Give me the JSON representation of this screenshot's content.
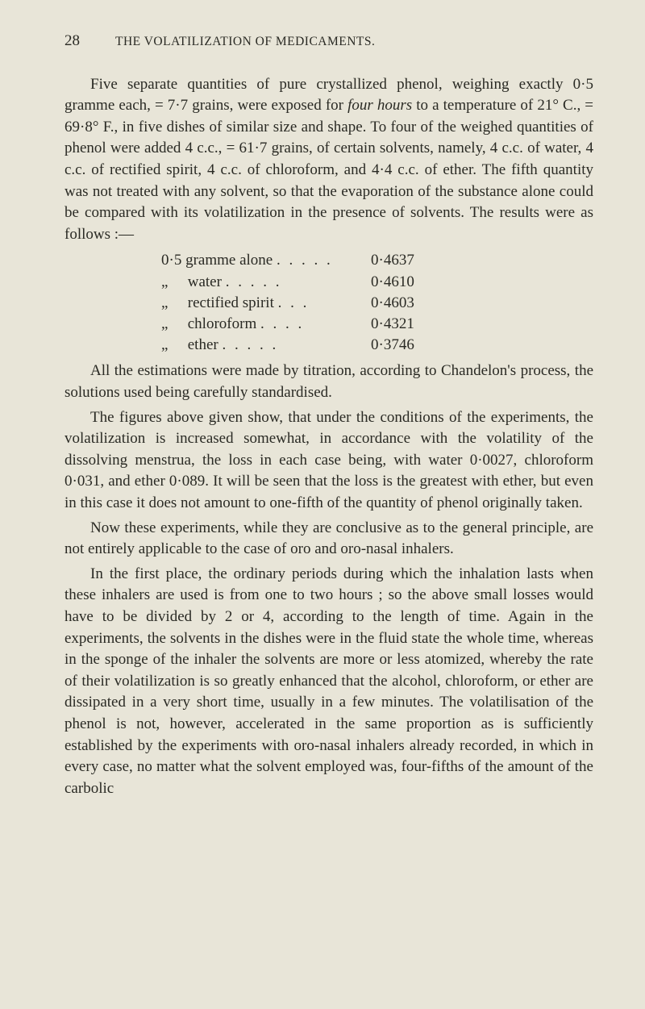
{
  "page_number": "28",
  "running_title": "THE VOLATILIZATION OF MEDICAMENTS.",
  "paragraphs": {
    "p1": "Five separate quantities of pure crystallized phenol, weighing exactly 0·5 gramme each, = 7·7 grains, were exposed for four hours to a temperature of 21° C., = 69·8° F., in five dishes of similar size and shape. To four of the weighed quantities of phenol were added 4 c.c., = 61·7 grains, of certain solvents, namely, 4 c.c. of water, 4 c.c. of rectified spirit, 4 c.c. of chloroform, and 4·4 c.c. of ether. The fifth quantity was not treated with any solvent, so that the evaporation of the substance alone could be compared with its volatilization in the presence of solvents. The results were as follows :—",
    "p2": "All the estimations were made by titration, according to Chandelon's process, the solutions used being carefully standardised.",
    "p3": "The figures above given show, that under the conditions of the experiments, the volatilization is increased somewhat, in accordance with the volatility of the dissolving menstrua, the loss in each case being, with water 0·0027, chloroform 0·031, and ether 0·089. It will be seen that the loss is the greatest with ether, but even in this case it does not amount to one-fifth of the quantity of phenol originally taken.",
    "p4": "Now these experiments, while they are conclusive as to the general principle, are not entirely applicable to the case of oro and oro-nasal inhalers.",
    "p5": "In the first place, the ordinary periods during which the inhalation lasts when these inhalers are used is from one to two hours ; so the above small losses would have to be divided by 2 or 4, according to the length of time. Again in the experiments, the solvents in the dishes were in the fluid state the whole time, whereas in the sponge of the inhaler the solvents are more or less atomized, whereby the rate of their volatilization is so greatly enhanced that the alcohol, chloroform, or ether are dissipated in a very short time, usually in a few minutes. The volatilisation of the phenol is not, however, accelerated in the same proportion as is sufficiently established by the experiments with oro-nasal inhalers already recorded, in which in every case, no matter what the solvent employed was, four-fifths of the amount of the carbolic"
  },
  "table": {
    "rows": [
      {
        "label": "0·5 gramme alone",
        "dots": ".    .    .    .    .",
        "value": "0·4637"
      },
      {
        "label": "water",
        "dots": ".    .    .    .    .",
        "value": "0·4610",
        "ditto": "„"
      },
      {
        "label": "rectified spirit",
        "dots": ".    .    .",
        "value": "0·4603",
        "ditto": "„"
      },
      {
        "label": "chloroform",
        "dots": ".    .    .    .",
        "value": "0·4321",
        "ditto": "„"
      },
      {
        "label": "ether",
        "dots": ".    .    .    .    .",
        "value": "0·3746",
        "ditto": "„"
      }
    ]
  }
}
